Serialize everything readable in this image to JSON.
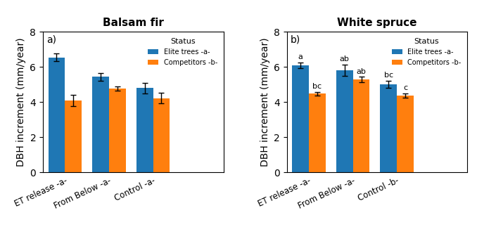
{
  "chart_data": [
    {
      "type": "bar",
      "title": "Balsam fir",
      "panel_label": "a)",
      "categories": [
        "ET release -a-",
        "From Below -a-",
        "Control -a-"
      ],
      "ylabel": "DBH increment (mm/year)",
      "ylim": [
        0,
        8
      ],
      "yticks": [
        0,
        2,
        4,
        6,
        8
      ],
      "legend": "upper right",
      "legend_title": "Status",
      "series": [
        {
          "name": "Elite trees -a-",
          "values": [
            6.55,
            5.45,
            4.8
          ],
          "errors": [
            0.22,
            0.22,
            0.3
          ]
        },
        {
          "name": "Competitors -b-",
          "values": [
            4.1,
            4.78,
            4.22
          ],
          "errors": [
            0.33,
            0.12,
            0.3
          ]
        }
      ]
    },
    {
      "type": "bar",
      "title": "White spruce",
      "panel_label": "b)",
      "categories": [
        "ET release -a-",
        "From Below -a-",
        "Control -b-"
      ],
      "ylabel": "DBH increment (mm/year)",
      "ylim": [
        0,
        8
      ],
      "yticks": [
        0,
        2,
        4,
        6,
        8
      ],
      "legend": "upper right",
      "legend_title": "Status",
      "series": [
        {
          "name": "Elite trees -a-",
          "values": [
            6.08,
            5.82,
            5.02
          ],
          "errors": [
            0.16,
            0.32,
            0.2
          ],
          "annotations": [
            "a",
            "ab",
            "bc"
          ]
        },
        {
          "name": "Competitors -b-",
          "values": [
            4.48,
            5.28,
            4.38
          ],
          "errors": [
            0.1,
            0.16,
            0.12
          ],
          "annotations": [
            "bc",
            "ab",
            "c"
          ]
        }
      ]
    }
  ]
}
